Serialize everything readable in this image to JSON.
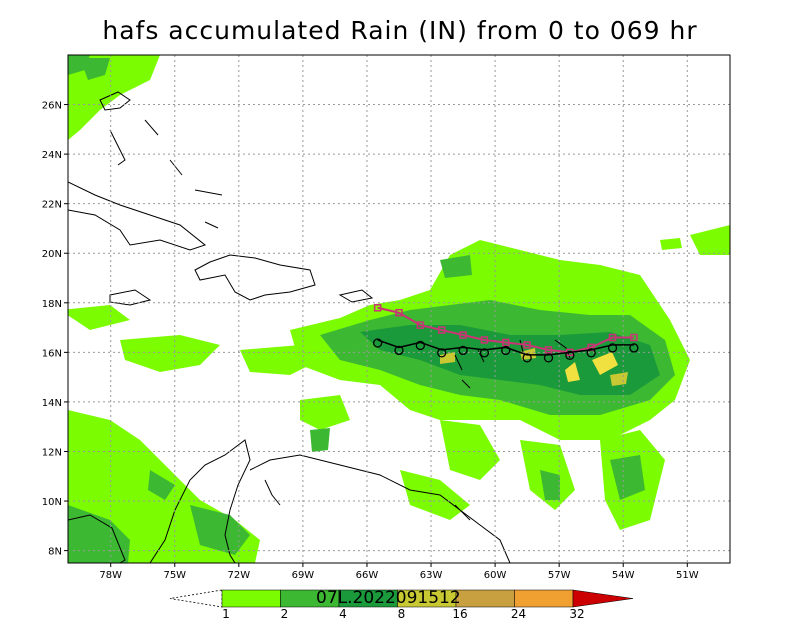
{
  "title": "hafs accumulated Rain (IN) from 0 to 069 hr",
  "lon_ticks": [
    "78W",
    "75W",
    "72W",
    "69W",
    "66W",
    "63W",
    "60W",
    "57W",
    "54W",
    "51W"
  ],
  "lat_ticks": [
    "26N",
    "24N",
    "22N",
    "20N",
    "18N",
    "16N",
    "14N",
    "12N",
    "10N",
    "8N"
  ],
  "colorbar": {
    "labels": [
      "1",
      "2",
      "4",
      "8",
      "16",
      "24",
      "32"
    ],
    "colors": [
      "#ffffff",
      "#7cfc00",
      "#3cb832",
      "#1a9a3a",
      "#c8c832",
      "#c8a040",
      "#f0a030",
      "#cc0000"
    ]
  },
  "stamp": "07L.2022091512",
  "colors": {
    "rain_light": "#7cfc00",
    "rain_mid": "#3cb832",
    "rain_heavy": "#1a9a3a",
    "rain_extreme": "#f0e040",
    "track": "#000000",
    "track_alt": "#cc3377"
  },
  "chart_data": {
    "type": "map",
    "title": "hafs accumulated Rain (IN) from 0 to 069 hr",
    "lon_range": [
      -80,
      -49
    ],
    "lat_range": [
      7.5,
      28
    ],
    "storm_id": "07L",
    "init_time": "2022091512",
    "track_lons": [
      -65.5,
      -64.5,
      -63.5,
      -62.5,
      -61.5,
      -60.5,
      -59.5,
      -58.5,
      -57.5,
      -56.5,
      -55.5,
      -54.5,
      -53.5
    ],
    "track_lats": [
      16.5,
      16.2,
      16.4,
      16.1,
      16.2,
      16.1,
      16.2,
      15.9,
      15.9,
      16.0,
      16.1,
      16.3,
      16.3
    ],
    "track_alt_lats": [
      17.8,
      17.6,
      17.1,
      16.9,
      16.7,
      16.5,
      16.4,
      16.3,
      16.1,
      16.0,
      16.2,
      16.6,
      16.6
    ]
  }
}
